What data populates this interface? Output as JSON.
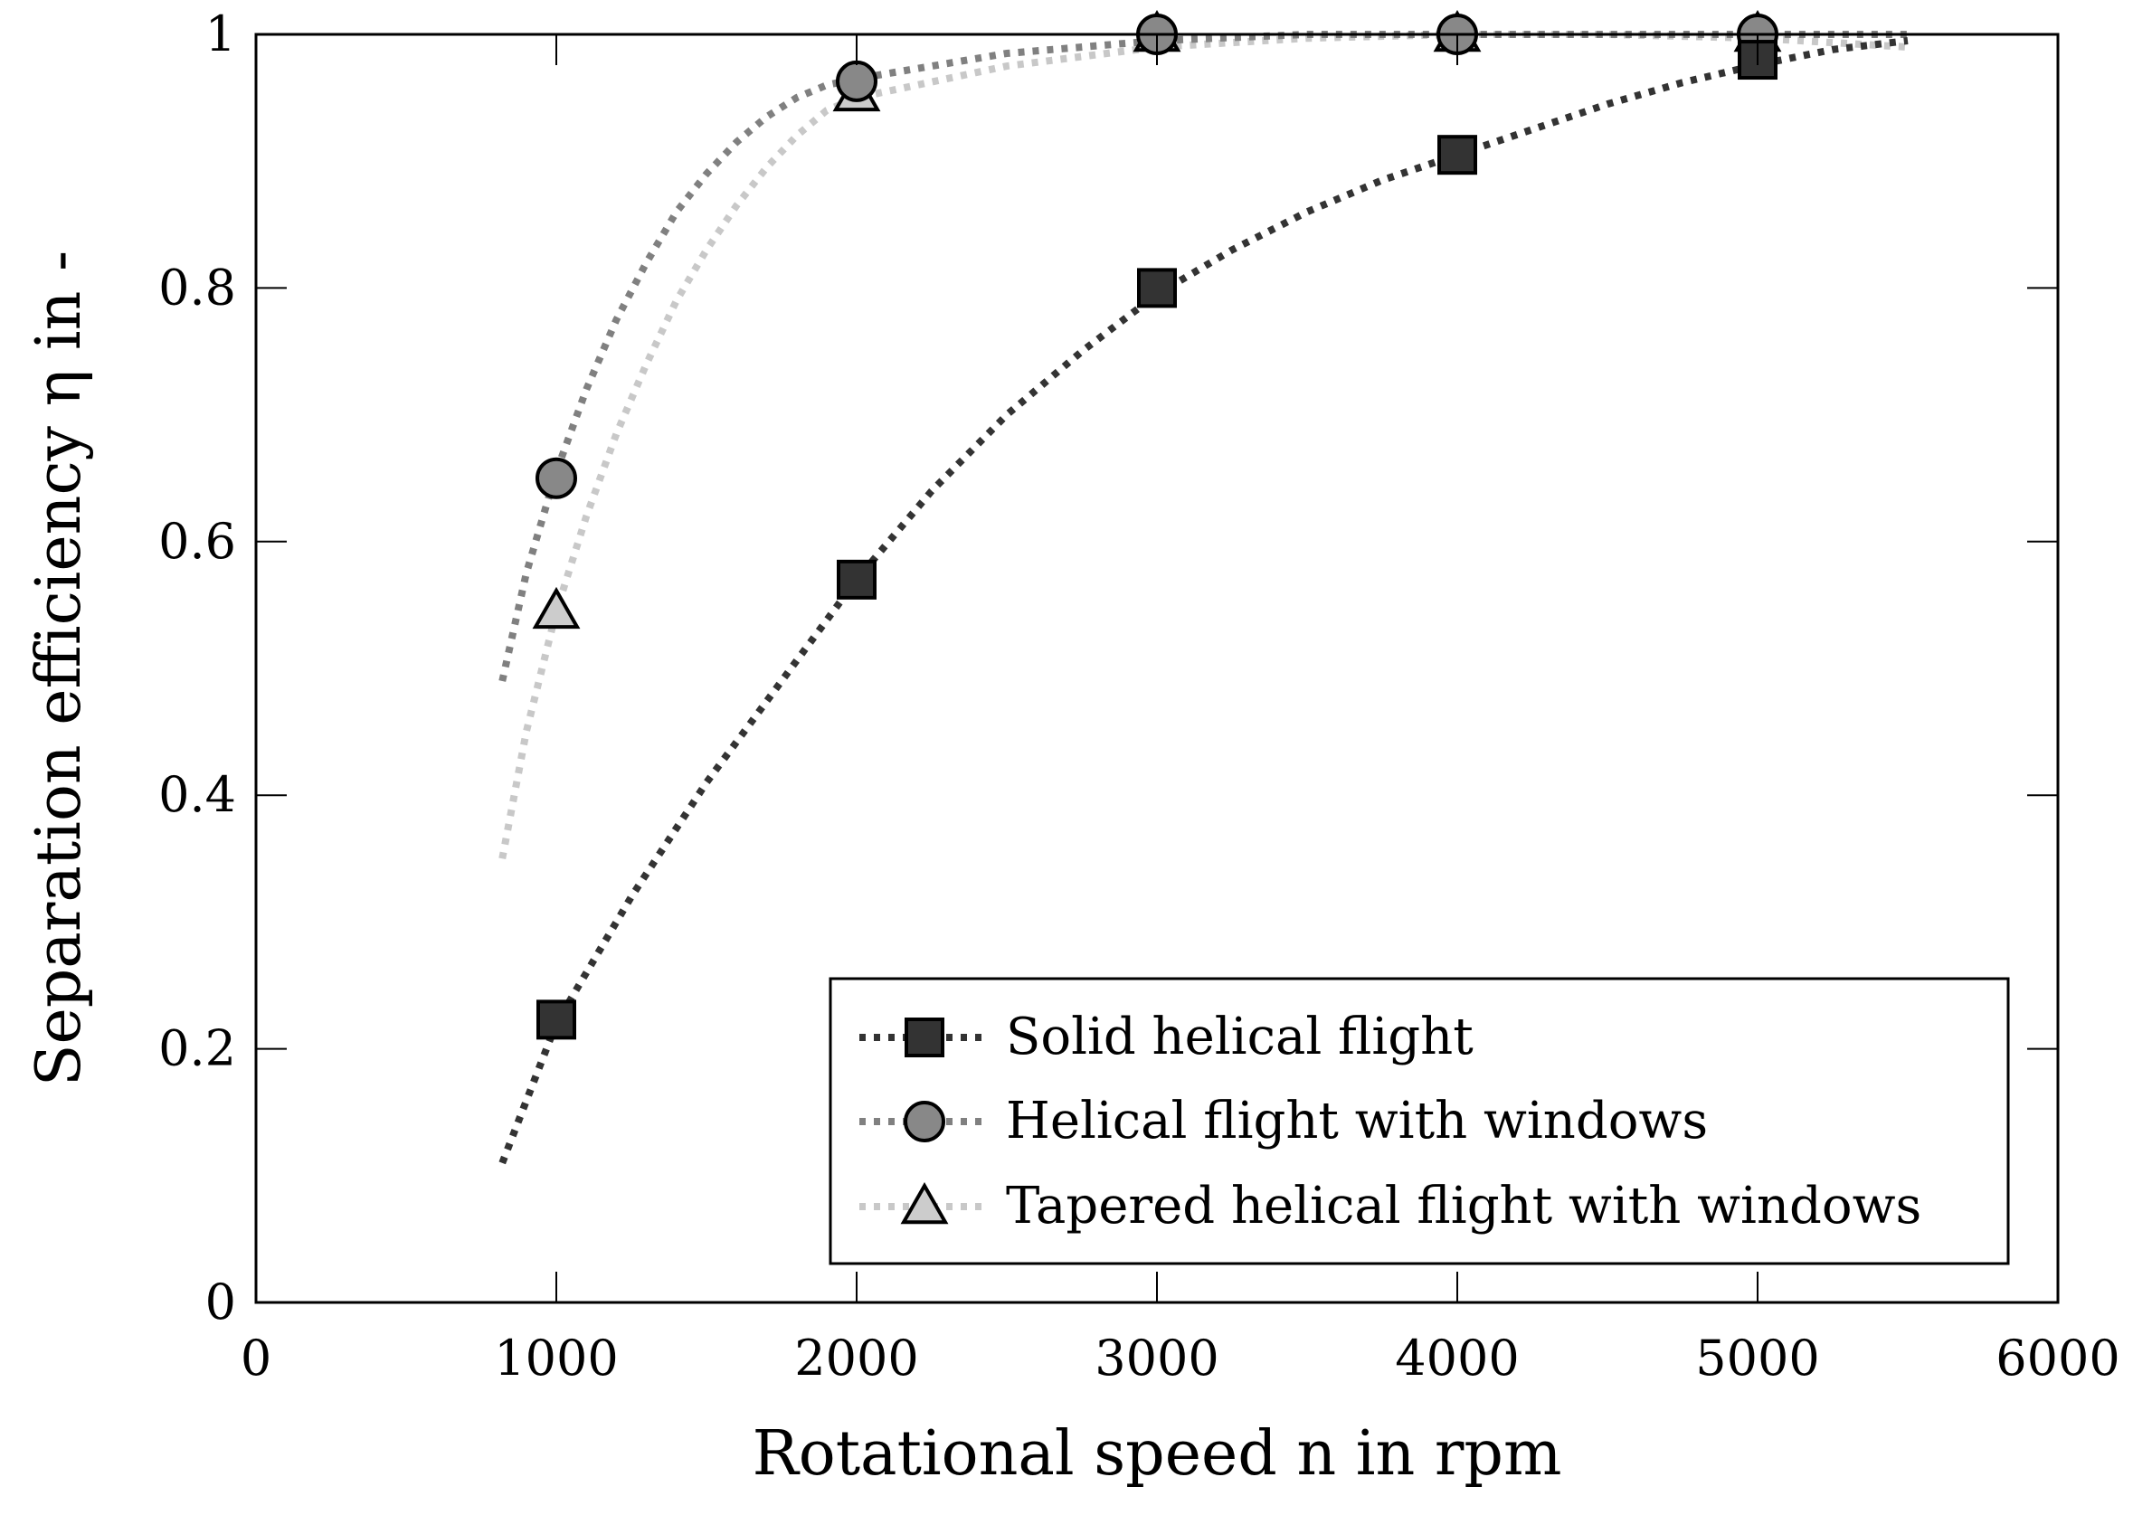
{
  "chart_data": {
    "type": "line",
    "title": "",
    "xlabel": "Rotational speed n in rpm",
    "ylabel": "Separation efficiency η in -",
    "xlim": [
      0,
      6000
    ],
    "ylim": [
      0,
      1
    ],
    "xticks": [
      0,
      1000,
      2000,
      3000,
      4000,
      5000,
      6000
    ],
    "yticks": [
      0,
      0.2,
      0.4,
      0.6,
      0.8,
      1
    ],
    "xtick_labels": [
      "0",
      "1000",
      "2000",
      "3000",
      "4000",
      "5000",
      "6000"
    ],
    "ytick_labels": [
      "0",
      "0.2",
      "0.4",
      "0.6",
      "0.8",
      "1"
    ],
    "grid": false,
    "legend_position": "bottom-right",
    "series": [
      {
        "name": "Solid helical flight",
        "marker": "square",
        "color": "#333333",
        "marker_fill": "#333333",
        "x": [
          1000,
          2000,
          3000,
          4000,
          5000
        ],
        "y": [
          0.223,
          0.57,
          0.8,
          0.905,
          0.98
        ],
        "fit_x": [
          820,
          1000,
          1250,
          1500,
          1750,
          2000,
          2250,
          2500,
          2750,
          3000,
          3250,
          3500,
          3750,
          4000,
          4250,
          4500,
          4750,
          5000,
          5250,
          5500
        ],
        "fit_y": [
          0.11,
          0.22,
          0.32,
          0.41,
          0.49,
          0.57,
          0.64,
          0.7,
          0.75,
          0.795,
          0.83,
          0.86,
          0.885,
          0.905,
          0.925,
          0.945,
          0.962,
          0.976,
          0.988,
          0.995
        ]
      },
      {
        "name": "Helical flight with windows",
        "marker": "circle",
        "color": "#808080",
        "marker_fill": "#888888",
        "x": [
          1000,
          2000,
          3000,
          4000,
          5000
        ],
        "y": [
          0.65,
          0.963,
          1.0,
          1.0,
          1.0
        ],
        "fit_x": [
          820,
          900,
          1000,
          1100,
          1200,
          1300,
          1400,
          1500,
          1600,
          1700,
          1800,
          1900,
          2000,
          2500,
          3000,
          3500,
          4000,
          4500,
          5000,
          5500
        ],
        "fit_y": [
          0.49,
          0.575,
          0.655,
          0.72,
          0.775,
          0.82,
          0.86,
          0.89,
          0.915,
          0.935,
          0.95,
          0.96,
          0.965,
          0.985,
          0.995,
          1.0,
          1.0,
          1.0,
          1.0,
          1.0
        ]
      },
      {
        "name": "Tapered helical flight with windows",
        "marker": "triangle",
        "color": "#c8c8c8",
        "marker_fill": "#cccccc",
        "x": [
          1000,
          2000,
          3000,
          4000,
          5000
        ],
        "y": [
          0.545,
          0.953,
          1.0,
          1.0,
          1.0
        ],
        "fit_x": [
          820,
          900,
          1000,
          1100,
          1200,
          1300,
          1400,
          1500,
          1600,
          1700,
          1800,
          1900,
          2000,
          2500,
          3000,
          3500,
          4000,
          4500,
          5000,
          5500
        ],
        "fit_y": [
          0.35,
          0.45,
          0.545,
          0.62,
          0.685,
          0.74,
          0.79,
          0.83,
          0.865,
          0.895,
          0.92,
          0.94,
          0.95,
          0.975,
          0.99,
          0.997,
          1.0,
          1.0,
          0.997,
          0.99
        ]
      }
    ]
  }
}
